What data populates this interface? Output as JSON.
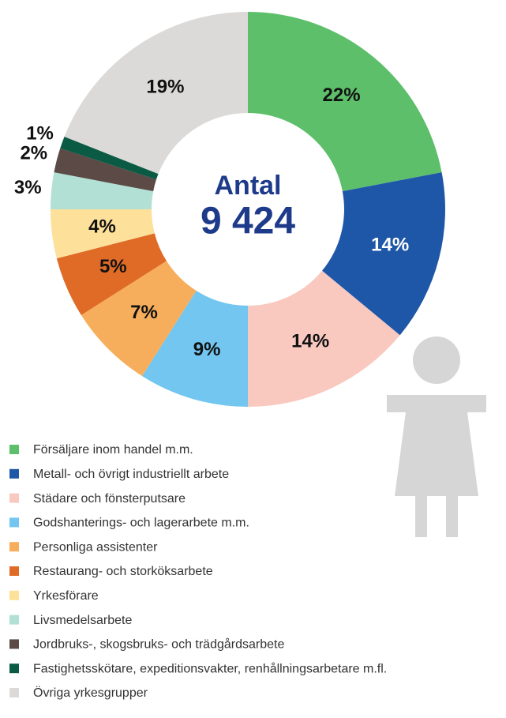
{
  "chart_data": {
    "type": "donut",
    "center_label": "Antal",
    "center_value": "9 424",
    "categories": [
      "Försäljare inom handel m.m.",
      "Metall- och övrigt industriellt arbete",
      "Städare och fönsterputsare",
      "Godshanterings- och lagerarbete m.m.",
      "Personliga assistenter",
      "Restaurang- och storköksarbete",
      "Yrkesförare",
      "Livsmedelsarbete",
      "Jordbruks-, skogsbruks- och trädgårdsarbete",
      "Fastighetsskötare, expeditionsvakter, renhållningsarbetare m.fl.",
      "Övriga yrkesgrupper"
    ],
    "values": [
      22,
      14,
      14,
      9,
      7,
      5,
      4,
      3,
      2,
      1,
      19
    ],
    "value_labels": [
      "22%",
      "14%",
      "14%",
      "9%",
      "7%",
      "5%",
      "4%",
      "3%",
      "2%",
      "1%",
      "19%"
    ],
    "colors": [
      "#5dbf6a",
      "#1f57a8",
      "#f9c9c0",
      "#72c6ef",
      "#f7ae5c",
      "#e06b27",
      "#fde19a",
      "#b3e0d5",
      "#5b4a46",
      "#0a5a44",
      "#dcdad8"
    ],
    "legend": "bottom"
  }
}
